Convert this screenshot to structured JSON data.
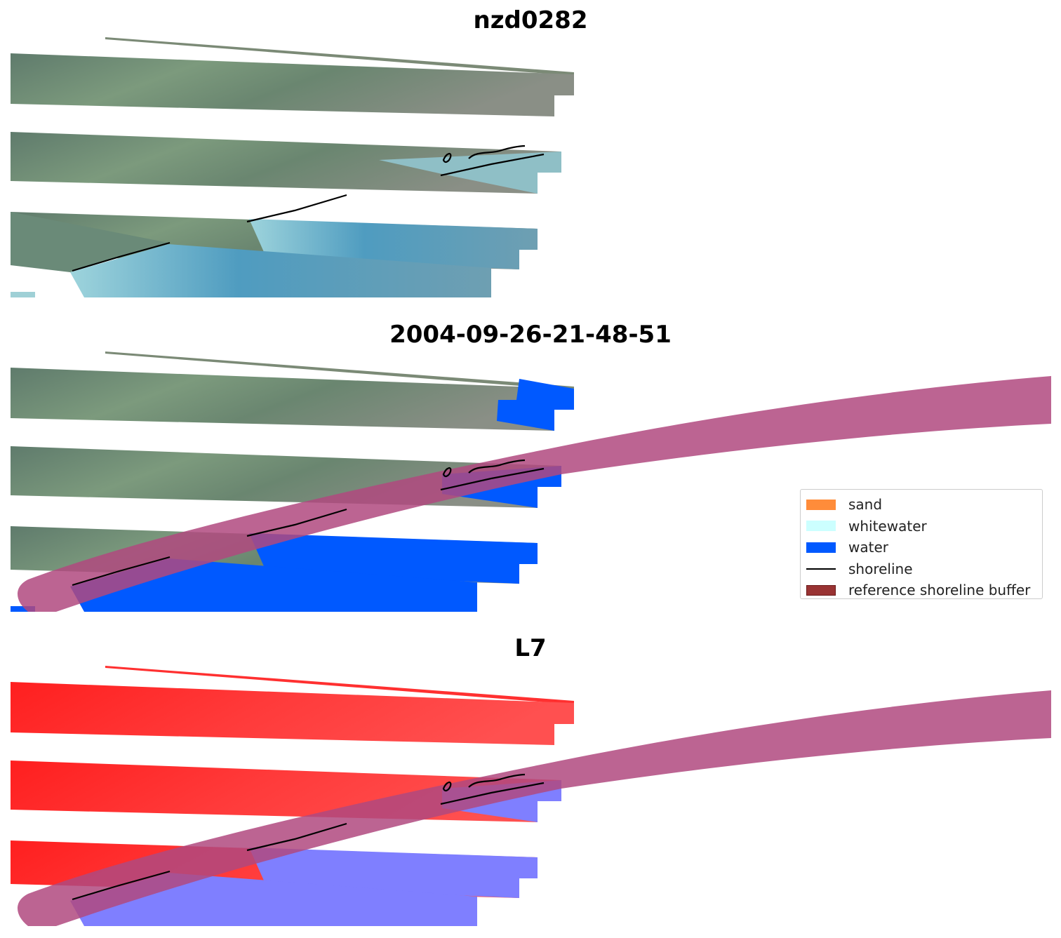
{
  "panels": [
    {
      "title": "nzd0282",
      "view": "rgb"
    },
    {
      "title": "2004-09-26-21-48-51",
      "view": "classified"
    },
    {
      "title": "L7",
      "view": "mndwi"
    }
  ],
  "legend": {
    "items": [
      {
        "label": "sand",
        "color": "#ff8c3a",
        "kind": "patch"
      },
      {
        "label": "whitewater",
        "color": "#ccffff",
        "kind": "patch"
      },
      {
        "label": "water",
        "color": "#0059ff",
        "kind": "patch"
      },
      {
        "label": "shoreline",
        "color": "#000000",
        "kind": "line"
      },
      {
        "label": "reference shoreline buffer",
        "color": "#8b2323",
        "kind": "patch"
      }
    ]
  },
  "colors": {
    "buffer_fill": "#b0497f",
    "land_rgb": "#6f8a78",
    "water_rgb": "#5e9fbf",
    "land_mndwi": "#ff2020",
    "water_mndwi": "#7f7fff"
  }
}
